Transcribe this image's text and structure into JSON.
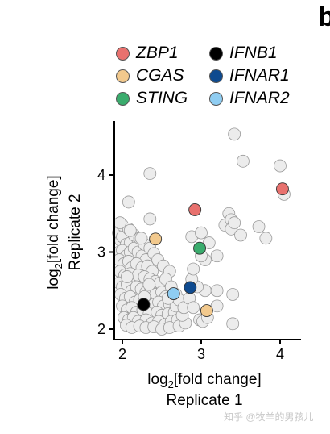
{
  "panel_letter": "b",
  "watermark": "知乎 @牧羊的男孩儿",
  "chart_data": {
    "type": "scatter",
    "title": "",
    "xlabel": "log2[fold change]",
    "xlabel_second_line": "Replicate 1",
    "ylabel": "log2[fold change]",
    "ylabel_second_line": "Replicate 2",
    "xlim": [
      1.85,
      4.25
    ],
    "ylim": [
      1.95,
      4.6
    ],
    "x_ticks": [
      2,
      3,
      4
    ],
    "y_ticks": [
      2,
      3,
      4
    ],
    "grid": false,
    "legend": "top",
    "background_points": [
      [
        1.95,
        3.25
      ],
      [
        1.98,
        3.15
      ],
      [
        2.0,
        3.2
      ],
      [
        2.05,
        3.1
      ],
      [
        2.1,
        3.12
      ],
      [
        2.2,
        3.15
      ],
      [
        1.96,
        3.0
      ],
      [
        2.0,
        3.02
      ],
      [
        2.05,
        2.95
      ],
      [
        2.1,
        3.0
      ],
      [
        2.15,
        3.05
      ],
      [
        2.2,
        3.0
      ],
      [
        2.25,
        2.95
      ],
      [
        2.3,
        2.9
      ],
      [
        1.96,
        2.9
      ],
      [
        2.02,
        2.85
      ],
      [
        2.08,
        2.88
      ],
      [
        2.12,
        2.8
      ],
      [
        2.18,
        2.85
      ],
      [
        2.25,
        2.8
      ],
      [
        2.32,
        2.82
      ],
      [
        2.38,
        2.75
      ],
      [
        1.97,
        2.75
      ],
      [
        2.03,
        2.7
      ],
      [
        2.1,
        2.72
      ],
      [
        2.15,
        2.65
      ],
      [
        2.2,
        2.7
      ],
      [
        2.28,
        2.68
      ],
      [
        2.35,
        2.65
      ],
      [
        2.42,
        2.62
      ],
      [
        2.48,
        2.6
      ],
      [
        1.96,
        2.6
      ],
      [
        2.0,
        2.55
      ],
      [
        2.06,
        2.58
      ],
      [
        2.12,
        2.5
      ],
      [
        2.18,
        2.55
      ],
      [
        2.24,
        2.52
      ],
      [
        2.3,
        2.48
      ],
      [
        2.36,
        2.5
      ],
      [
        2.42,
        2.45
      ],
      [
        2.5,
        2.48
      ],
      [
        2.55,
        2.42
      ],
      [
        1.98,
        2.45
      ],
      [
        2.04,
        2.4
      ],
      [
        2.1,
        2.42
      ],
      [
        2.16,
        2.35
      ],
      [
        2.22,
        2.38
      ],
      [
        2.32,
        2.35
      ],
      [
        2.4,
        2.32
      ],
      [
        2.46,
        2.35
      ],
      [
        2.52,
        2.3
      ],
      [
        2.6,
        2.32
      ],
      [
        2.0,
        2.3
      ],
      [
        2.06,
        2.25
      ],
      [
        2.12,
        2.28
      ],
      [
        2.18,
        2.22
      ],
      [
        2.26,
        2.25
      ],
      [
        2.34,
        2.2
      ],
      [
        2.44,
        2.22
      ],
      [
        2.5,
        2.18
      ],
      [
        2.58,
        2.2
      ],
      [
        2.66,
        2.22
      ],
      [
        2.02,
        2.15
      ],
      [
        2.08,
        2.12
      ],
      [
        2.14,
        2.15
      ],
      [
        2.2,
        2.1
      ],
      [
        2.3,
        2.12
      ],
      [
        2.38,
        2.08
      ],
      [
        2.46,
        2.1
      ],
      [
        2.54,
        2.06
      ],
      [
        2.62,
        2.1
      ],
      [
        2.7,
        2.12
      ],
      [
        2.05,
        2.05
      ],
      [
        2.12,
        2.02
      ],
      [
        2.22,
        2.04
      ],
      [
        2.3,
        2.02
      ],
      [
        2.4,
        2.03
      ],
      [
        2.5,
        2.0
      ],
      [
        2.6,
        2.02
      ],
      [
        2.72,
        2.04
      ],
      [
        2.8,
        2.08
      ],
      [
        2.76,
        2.18
      ],
      [
        2.68,
        2.3
      ],
      [
        2.0,
        3.35
      ],
      [
        2.08,
        3.3
      ],
      [
        2.15,
        3.22
      ],
      [
        1.97,
        3.38
      ],
      [
        2.28,
        3.1
      ],
      [
        2.35,
        3.05
      ],
      [
        2.4,
        2.98
      ],
      [
        2.45,
        2.9
      ],
      [
        2.52,
        2.82
      ],
      [
        2.6,
        2.75
      ],
      [
        2.55,
        2.65
      ],
      [
        2.62,
        2.55
      ],
      [
        2.68,
        2.45
      ],
      [
        2.72,
        2.38
      ],
      [
        2.22,
        3.18
      ],
      [
        2.1,
        3.28
      ],
      [
        2.06,
        2.68
      ],
      [
        2.34,
        2.58
      ],
      [
        2.28,
        2.42
      ],
      [
        2.58,
        2.4
      ],
      [
        2.08,
        3.65
      ],
      [
        2.35,
        4.02
      ],
      [
        2.35,
        3.43
      ],
      [
        2.24,
        3.18
      ],
      [
        2.78,
        2.28
      ],
      [
        2.85,
        2.4
      ],
      [
        2.9,
        2.28
      ],
      [
        2.98,
        2.12
      ],
      [
        3.02,
        2.1
      ],
      [
        3.08,
        2.15
      ],
      [
        3.2,
        2.3
      ],
      [
        3.05,
        2.5
      ],
      [
        2.95,
        2.55
      ],
      [
        2.88,
        2.65
      ],
      [
        2.9,
        2.78
      ],
      [
        3.05,
        2.9
      ],
      [
        3.0,
        2.95
      ],
      [
        2.88,
        3.2
      ],
      [
        3.0,
        3.25
      ],
      [
        3.1,
        3.12
      ],
      [
        3.2,
        2.95
      ],
      [
        3.3,
        3.35
      ],
      [
        3.35,
        3.5
      ],
      [
        3.38,
        3.42
      ],
      [
        3.38,
        3.3
      ],
      [
        3.42,
        3.38
      ],
      [
        3.5,
        3.22
      ],
      [
        3.73,
        3.33
      ],
      [
        3.82,
        3.18
      ],
      [
        3.42,
        4.53
      ],
      [
        3.53,
        4.18
      ],
      [
        4.0,
        4.12
      ],
      [
        4.05,
        3.75
      ],
      [
        3.4,
        2.45
      ],
      [
        3.4,
        2.07
      ],
      [
        3.2,
        2.5
      ]
    ],
    "highlighted": [
      {
        "name": "ZBP1",
        "x": 2.92,
        "y": 3.55,
        "color": "#e8716e"
      },
      {
        "name": "CGAS",
        "x": 2.42,
        "y": 3.17,
        "color": "#f2c98d"
      },
      {
        "name": "STING",
        "x": 2.98,
        "y": 3.05,
        "color": "#3aac6d"
      },
      {
        "name": "IFNB1",
        "x": 2.27,
        "y": 2.32,
        "color": "#000000"
      },
      {
        "name": "IFNAR1",
        "x": 2.86,
        "y": 2.54,
        "color": "#0e4a8f"
      },
      {
        "name": "IFNAR2",
        "x": 2.65,
        "y": 2.46,
        "color": "#8fcdf2"
      },
      {
        "name": "ZBP1",
        "x": 4.03,
        "y": 3.82,
        "color": "#e8716e"
      },
      {
        "name": "CGAS",
        "x": 3.07,
        "y": 2.24,
        "color": "#f2c98d"
      }
    ],
    "series_legend": [
      {
        "name": "ZBP1",
        "color": "#e8716e"
      },
      {
        "name": "CGAS",
        "color": "#f2c98d"
      },
      {
        "name": "STING",
        "color": "#3aac6d"
      },
      {
        "name": "IFNB1",
        "color": "#000000"
      },
      {
        "name": "IFNAR1",
        "color": "#0e4a8f"
      },
      {
        "name": "IFNAR2",
        "color": "#8fcdf2"
      }
    ],
    "background_color": "#ececec"
  }
}
